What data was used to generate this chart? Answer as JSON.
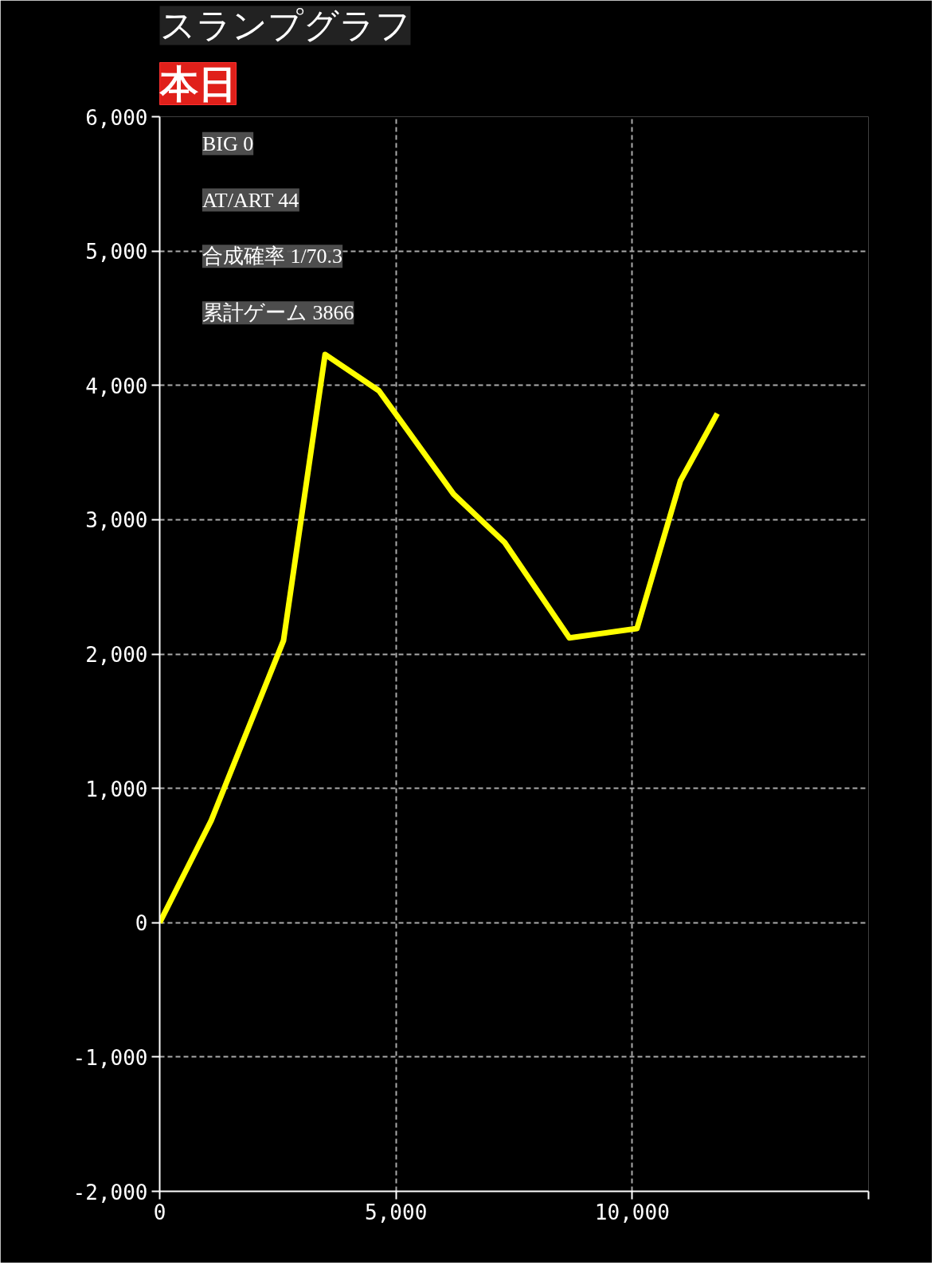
{
  "chart_data": {
    "type": "line",
    "title": "スランプグラフ",
    "subtitle": "本日",
    "annotations": [
      "BIG 0",
      "AT/ART 44",
      "合成確率 1/70.3",
      "累計ゲーム 3866"
    ],
    "x": [
      0,
      1090,
      2620,
      3500,
      4640,
      6220,
      7300,
      8670,
      10100,
      11020,
      11800
    ],
    "series": [
      {
        "color": "#ffff00",
        "values": [
          0,
          760,
          2100,
          4230,
          3960,
          3190,
          2830,
          2120,
          2190,
          3290,
          3790
        ]
      }
    ],
    "xlim": [
      0,
      15000
    ],
    "xticks": [
      0,
      {
        "value": 5000,
        "label": "5,000"
      },
      {
        "value": 10000,
        "label": "10,000"
      },
      {
        "value": 15000,
        "label": null
      }
    ],
    "ylim": [
      -2000,
      6000
    ],
    "yticks": [
      {
        "value": -2000,
        "label": "-2,000"
      },
      {
        "value": -1000,
        "label": "-1,000"
      },
      0,
      {
        "value": 1000,
        "label": "1,000"
      },
      {
        "value": 2000,
        "label": "2,000"
      },
      {
        "value": 3000,
        "label": "3,000"
      },
      {
        "value": 4000,
        "label": "4,000"
      },
      {
        "value": 5000,
        "label": "5,000"
      },
      {
        "value": 6000,
        "label": "6,000"
      }
    ],
    "grid": true,
    "marker": "none",
    "line_style": "solid"
  }
}
